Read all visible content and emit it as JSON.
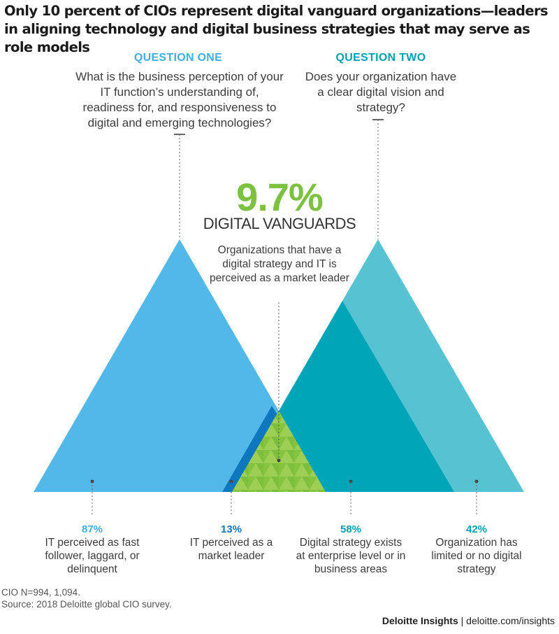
{
  "title": "Only 10 percent of CIOs represent digital vanguard organizations—leaders in aligning technology and digital business strategies that may serve as role models",
  "question_one": {
    "heading": "QUESTION ONE",
    "text": "What is the business perception of your IT function’s understanding of, readiness for, and responsiveness to digital and emerging technologies?"
  },
  "question_two": {
    "heading": "QUESTION TWO",
    "text": "Does your organization have a clear digital vision and strategy?"
  },
  "center": {
    "value": "9.7%",
    "label": "DIGITAL VANGUARDS",
    "description": "Organizations that have a digital strategy and IT is perceived as a market leader"
  },
  "chart_data": {
    "type": "venn-triangles",
    "series": [
      {
        "value": "87%",
        "label": "IT perceived as fast follower, laggard, or delinquent",
        "color": "#52b8e9"
      },
      {
        "value": "13%",
        "label": "IT perceived as a market leader",
        "color": "#0e78bf"
      },
      {
        "value": "58%",
        "label": "Digital strategy exists at enterprise level or in business areas",
        "color": "#00a6b8"
      },
      {
        "value": "42%",
        "label": "Organization has limited or no digital strategy",
        "color": "#57c3d2"
      }
    ],
    "overlap": {
      "value": 9.7,
      "unit": "%",
      "color": "#86c440"
    }
  },
  "colors": {
    "q1_heading": "#3fafe2",
    "q2_heading": "#00a0b0",
    "green": "#7dc143"
  },
  "notes": {
    "n": "CIO N=994, 1,094.",
    "source": "Source: 2018 Deloitte global CIO survey."
  },
  "brand": {
    "name": "Deloitte Insights",
    "separator": " | ",
    "url": "deloitte.com/insights"
  }
}
